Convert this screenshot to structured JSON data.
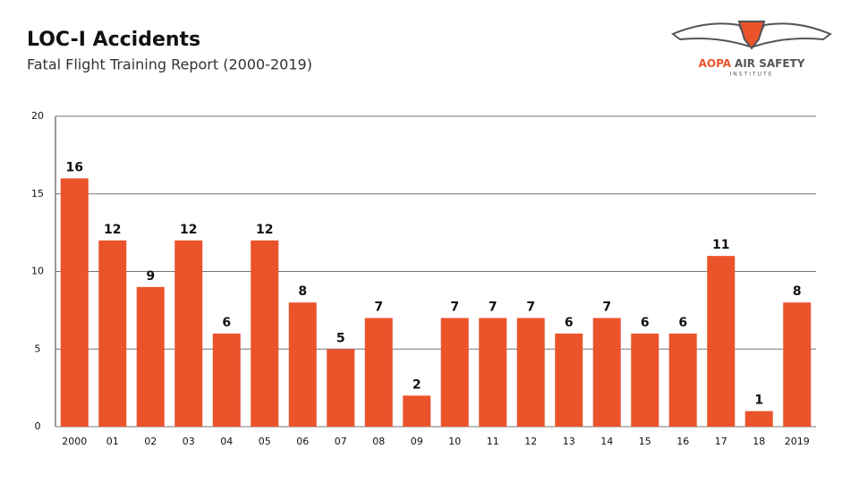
{
  "chart_data": {
    "type": "bar",
    "title": "LOC-I Accidents",
    "subtitle": "Fatal Flight Training Report (2000-2019)",
    "categories": [
      "2000",
      "01",
      "02",
      "03",
      "04",
      "05",
      "06",
      "07",
      "08",
      "09",
      "10",
      "11",
      "12",
      "13",
      "14",
      "15",
      "16",
      "17",
      "18",
      "2019"
    ],
    "values": [
      16,
      12,
      9,
      12,
      6,
      12,
      8,
      5,
      7,
      2,
      7,
      7,
      7,
      6,
      7,
      6,
      6,
      11,
      1,
      8
    ],
    "color": "#eb532b",
    "ylim": [
      0,
      20
    ],
    "yticks": [
      0,
      5,
      10,
      15,
      20
    ],
    "grid": true
  },
  "logo": {
    "brand": "AOPA",
    "name": "AIR SAFETY",
    "tagline": "INSTITUTE"
  }
}
